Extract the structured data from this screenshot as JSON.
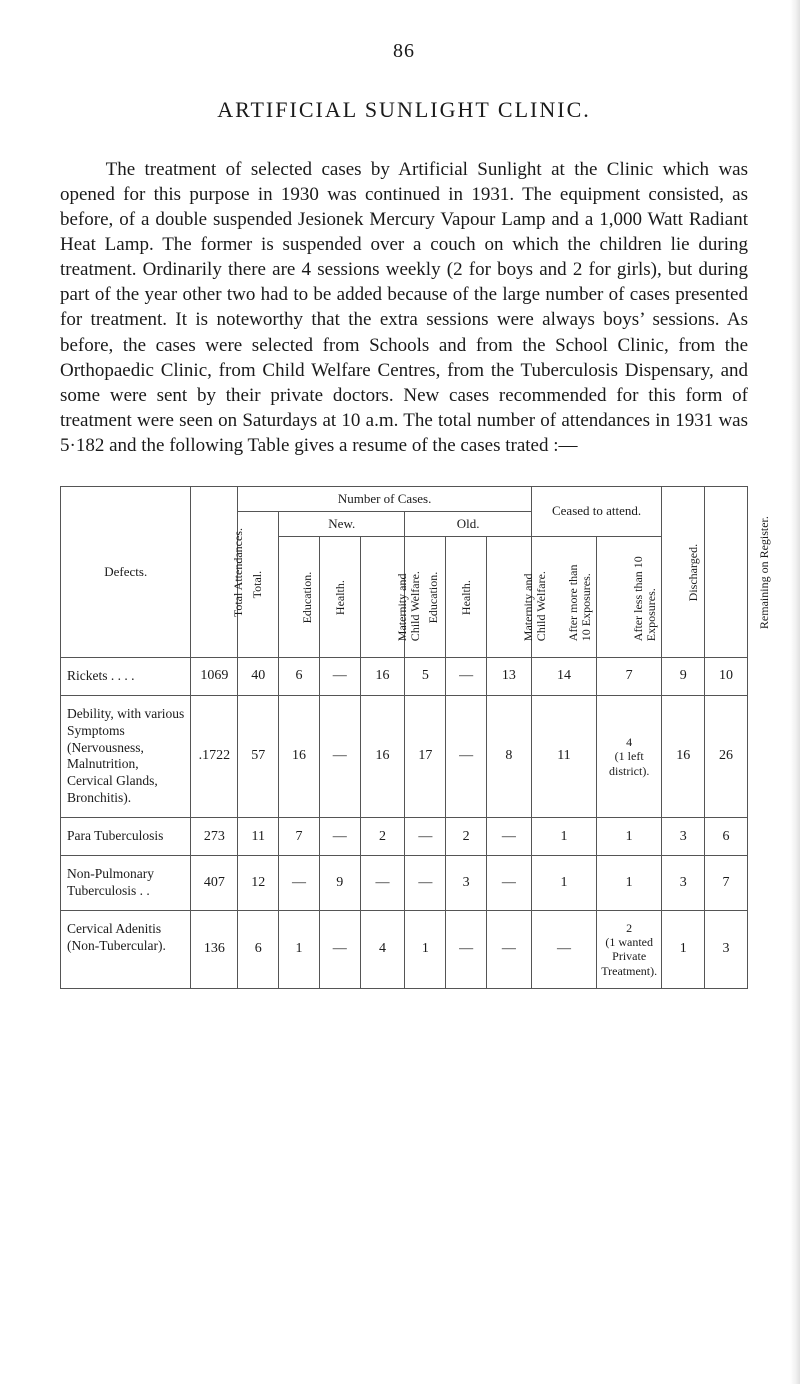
{
  "page_number": "86",
  "heading": "ARTIFICIAL SUNLIGHT CLINIC.",
  "paragraph": "The treatment of selected cases by Artificial Sunlight at the Clinic which was opened for this purpose in 1930 was continued in 1931. The equipment consisted, as before, of a double suspended Jesionek Mercury Vapour Lamp and a 1,000 Watt Radiant Heat Lamp. The former is suspended over a couch on which the children lie during treatment. Ordinarily there are 4 sessions weekly (2 for boys and 2 for girls), but during part of the year other two had to be added because of the large number of cases presented for treatment. It is noteworthy that the extra sessions were always boys’ sessions. As before, the cases were selected from Schools and from the School Clinic, from the Orthopaedic Clinic, from Child Welfare Centres, from the Tuberculosis Dispensary, and some were sent by their private doctors. New cases recommended for this form of treatment were seen on Saturdays at 10 a.m. The total number of attend­ances in 1931 was 5·182 and the following Table gives a resume of the cases trated :—",
  "table": {
    "headers": {
      "defects": "Defects.",
      "total_attendances": "Total Attendances.",
      "number_of_cases": "Number of Cases.",
      "total": "Total.",
      "new": "New.",
      "old": "Old.",
      "education": "Education.",
      "health": "Health.",
      "maternity": "Maternity and Child Welfare.",
      "ceased": "Ceased to attend.",
      "after_more": "After more than 10 Exposures.",
      "after_less": "After less than 10 Exposures.",
      "discharged": "Discharged.",
      "remaining": "Remaining on Register."
    },
    "rows": [
      {
        "defect": "Rickets  . .      . .",
        "total_attendances": "1069",
        "total": "40",
        "new_edu": "6",
        "new_health": "—",
        "new_mat": "16",
        "old_edu": "5",
        "old_health": "—",
        "old_mat": "13",
        "after_more": "14",
        "after_less": "7",
        "discharged": "9",
        "remaining": "10"
      },
      {
        "defect": "Debility, with various Symptoms (Nervousness, Malnutrition, Cervical Glands, Bronchitis).",
        "total_attendances": ".1722",
        "total": "57",
        "new_edu": "16",
        "new_health": "—",
        "new_mat": "16",
        "old_edu": "17",
        "old_health": "—",
        "old_mat": "8",
        "after_more": "11",
        "after_less": "4\n(1 left district).",
        "discharged": "16",
        "remaining": "26"
      },
      {
        "defect": "Para Tuberculosis",
        "total_attendances": "273",
        "total": "11",
        "new_edu": "7",
        "new_health": "—",
        "new_mat": "2",
        "old_edu": "—",
        "old_health": "2",
        "old_mat": "—",
        "after_more": "1",
        "after_less": "1",
        "discharged": "3",
        "remaining": "6"
      },
      {
        "defect": "Non-Pulmonary Tuberculosis . .",
        "total_attendances": "407",
        "total": "12",
        "new_edu": "—",
        "new_health": "9",
        "new_mat": "—",
        "old_edu": "—",
        "old_health": "3",
        "old_mat": "—",
        "after_more": "1",
        "after_less": "1",
        "discharged": "3",
        "remaining": "7"
      },
      {
        "defect": "Cervical Adenitis (Non-Tubercular).",
        "total_attendances": "136",
        "total": "6",
        "new_edu": "1",
        "new_health": "—",
        "new_mat": "4",
        "old_edu": "1",
        "old_health": "—",
        "old_mat": "—",
        "after_more": "—",
        "after_less": "2\n(1 wanted Private Treat­ment).",
        "discharged": "1",
        "remaining": "3"
      }
    ]
  }
}
